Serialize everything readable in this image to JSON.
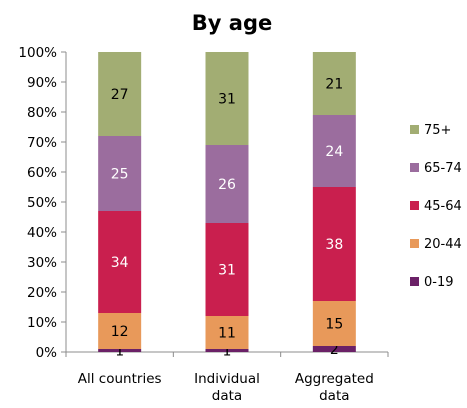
{
  "chart_data": {
    "type": "bar",
    "stacked": true,
    "title": "By age",
    "categories": [
      "All countries",
      "Individual data",
      "Aggregated data"
    ],
    "category_lines": [
      [
        "All countries"
      ],
      [
        "Individual",
        "data"
      ],
      [
        "Aggregated",
        "data"
      ]
    ],
    "series": [
      {
        "name": "0-19",
        "values": [
          1,
          1,
          2
        ],
        "color": "#6b2167",
        "label_color": "#000000"
      },
      {
        "name": "20-44",
        "values": [
          12,
          11,
          15
        ],
        "color": "#e8995a",
        "label_color": "#000000"
      },
      {
        "name": "45-64",
        "values": [
          34,
          31,
          38
        ],
        "color": "#c91f4e",
        "label_color": "#ffffff"
      },
      {
        "name": "65-74",
        "values": [
          25,
          26,
          24
        ],
        "color": "#9b6d9e",
        "label_color": "#ffffff"
      },
      {
        "name": "75+",
        "values": [
          27,
          31,
          21
        ],
        "color": "#a2ad73",
        "label_color": "#000000"
      }
    ],
    "yticks": [
      "0%",
      "10%",
      "20%",
      "30%",
      "40%",
      "50%",
      "60%",
      "70%",
      "80%",
      "90%",
      "100%"
    ],
    "ylim": [
      0,
      100
    ],
    "grid": false,
    "legend_position": "right"
  }
}
